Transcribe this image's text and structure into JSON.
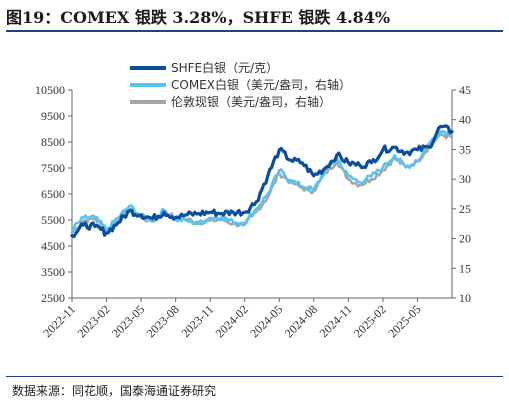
{
  "figure": {
    "title": "图19：COMEX 银跌 3.28%，SHFE 银跌 4.84%",
    "source": "数据来源：同花顺，国泰海通证券研究"
  },
  "colors": {
    "shfe": "#0b4f9c",
    "comex": "#57c4f0",
    "lunlun": "#a6a6a6",
    "rule": "#1f3f8f"
  },
  "chart_data": {
    "type": "line",
    "legend": [
      "SHFE白银（元/克）",
      "COMEX白银（美元/盎司，右轴）",
      "伦敦现银（美元/盎司，右轴）"
    ],
    "legend_position": "top-center",
    "x_tick_labels": [
      "2022-11",
      "2023-02",
      "2023-05",
      "2023-08",
      "2023-11",
      "2024-02",
      "2024-05",
      "2024-08",
      "2024-11",
      "2025-02",
      "2025-05"
    ],
    "xlim": [
      "2022-11",
      "2025-08"
    ],
    "ylim_left": [
      2500,
      10500
    ],
    "ylim_right": [
      10,
      45
    ],
    "yticks_left": [
      2500,
      3500,
      4500,
      5500,
      6500,
      7500,
      8500,
      9500,
      10500
    ],
    "yticks_right": [
      10,
      15,
      20,
      25,
      30,
      35,
      40,
      45
    ],
    "grid": false,
    "series": [
      {
        "name": "SHFE白银（元/克）",
        "axis": "left",
        "x": [
          "2022-11",
          "2022-12",
          "2023-01",
          "2023-02",
          "2023-03",
          "2023-04",
          "2023-05",
          "2023-06",
          "2023-07",
          "2023-08",
          "2023-09",
          "2023-10",
          "2023-11",
          "2023-12",
          "2024-01",
          "2024-02",
          "2024-03",
          "2024-04",
          "2024-05",
          "2024-06",
          "2024-07",
          "2024-08",
          "2024-09",
          "2024-10",
          "2024-11",
          "2024-12",
          "2025-01",
          "2025-02",
          "2025-03",
          "2025-04",
          "2025-05",
          "2025-06",
          "2025-07",
          "2025-08"
        ],
        "values": [
          4900,
          5300,
          5250,
          5000,
          5400,
          5850,
          5700,
          5550,
          5800,
          5600,
          5700,
          5750,
          5800,
          5750,
          5800,
          5800,
          6200,
          7200,
          8200,
          7800,
          7700,
          7200,
          7500,
          8000,
          7700,
          7600,
          7700,
          8200,
          8300,
          8100,
          8200,
          8300,
          9100,
          8900
        ]
      },
      {
        "name": "COMEX白银（美元/盎司，右轴）",
        "axis": "right",
        "x": [
          "2022-11",
          "2022-12",
          "2023-01",
          "2023-02",
          "2023-03",
          "2023-04",
          "2023-05",
          "2023-06",
          "2023-07",
          "2023-08",
          "2023-09",
          "2023-10",
          "2023-11",
          "2023-12",
          "2024-01",
          "2024-02",
          "2024-03",
          "2024-04",
          "2024-05",
          "2024-06",
          "2024-07",
          "2024-08",
          "2024-09",
          "2024-10",
          "2024-11",
          "2024-12",
          "2025-01",
          "2025-02",
          "2025-03",
          "2025-04",
          "2025-05",
          "2025-06",
          "2025-07",
          "2025-08"
        ],
        "values": [
          21.5,
          23.5,
          23.6,
          21.5,
          23.5,
          25.5,
          23.8,
          23.2,
          24.8,
          23.2,
          23.0,
          22.5,
          23.5,
          23.6,
          22.8,
          22.6,
          25.0,
          27.5,
          31.5,
          29.8,
          28.8,
          28.2,
          31.5,
          33.5,
          30.5,
          29.5,
          30.5,
          32.0,
          34.0,
          32.0,
          33.0,
          36.0,
          38.0,
          38.0
        ]
      },
      {
        "name": "伦敦现银（美元/盎司，右轴）",
        "axis": "right",
        "x": [
          "2022-11",
          "2022-12",
          "2023-01",
          "2023-02",
          "2023-03",
          "2023-04",
          "2023-05",
          "2023-06",
          "2023-07",
          "2023-08",
          "2023-09",
          "2023-10",
          "2023-11",
          "2023-12",
          "2024-01",
          "2024-02",
          "2024-03",
          "2024-04",
          "2024-05",
          "2024-06",
          "2024-07",
          "2024-08",
          "2024-09",
          "2024-10",
          "2024-11",
          "2024-12",
          "2025-01",
          "2025-02",
          "2025-03",
          "2025-04",
          "2025-05",
          "2025-06",
          "2025-07",
          "2025-08"
        ],
        "values": [
          21.0,
          23.0,
          23.4,
          21.2,
          23.0,
          25.0,
          23.5,
          22.9,
          24.5,
          23.5,
          23.2,
          22.8,
          23.0,
          23.2,
          22.5,
          22.3,
          24.5,
          27.0,
          31.0,
          29.5,
          28.5,
          28.0,
          31.0,
          33.0,
          30.0,
          29.0,
          30.0,
          31.5,
          33.5,
          32.0,
          33.0,
          35.5,
          37.5,
          37.0
        ]
      }
    ]
  }
}
